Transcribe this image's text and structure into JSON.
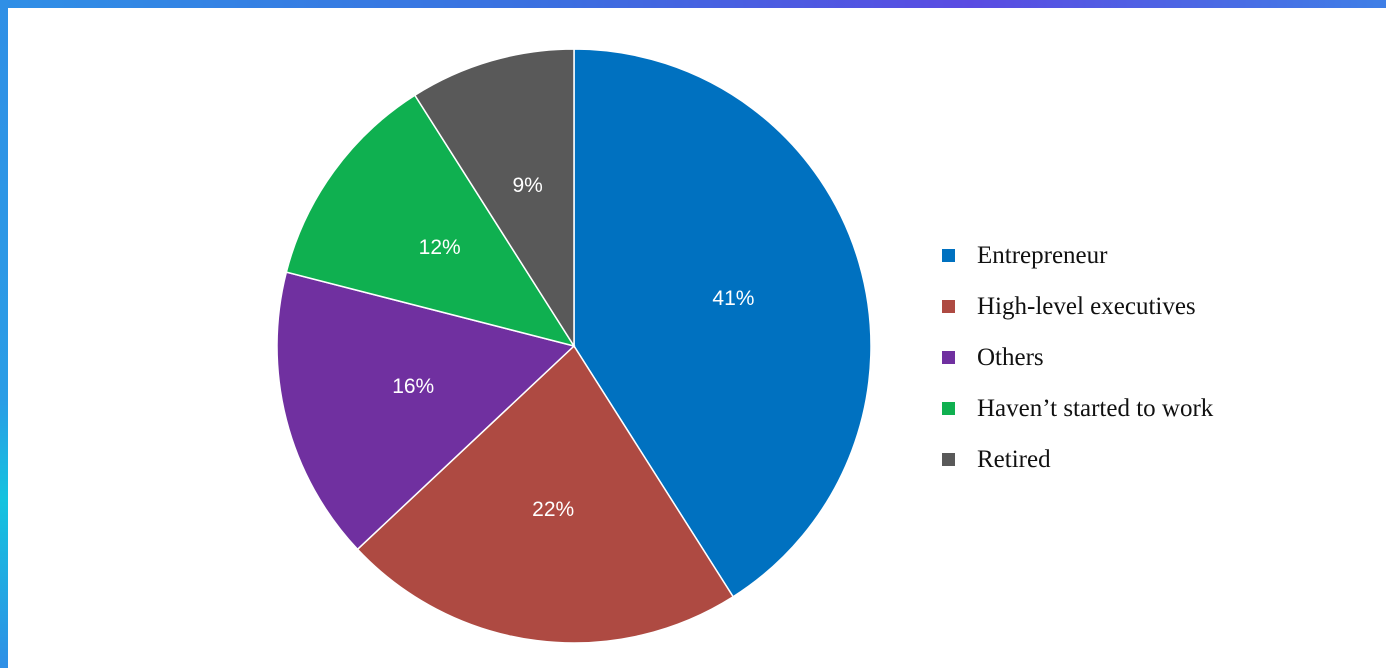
{
  "chart_data": {
    "type": "pie",
    "title": "",
    "categories": [
      "Entrepreneur",
      "High-level executives",
      "Others",
      "Haven’t started to work",
      "Retired"
    ],
    "values": [
      41,
      22,
      16,
      12,
      9
    ],
    "labels": [
      "41%",
      "22%",
      "16%",
      "12%",
      "9%"
    ],
    "colors": [
      "#0071c0",
      "#ae4a42",
      "#7030a0",
      "#0fb050",
      "#595959"
    ],
    "start_angle": "12 o'clock",
    "direction": "clockwise",
    "legend_position": "right"
  }
}
